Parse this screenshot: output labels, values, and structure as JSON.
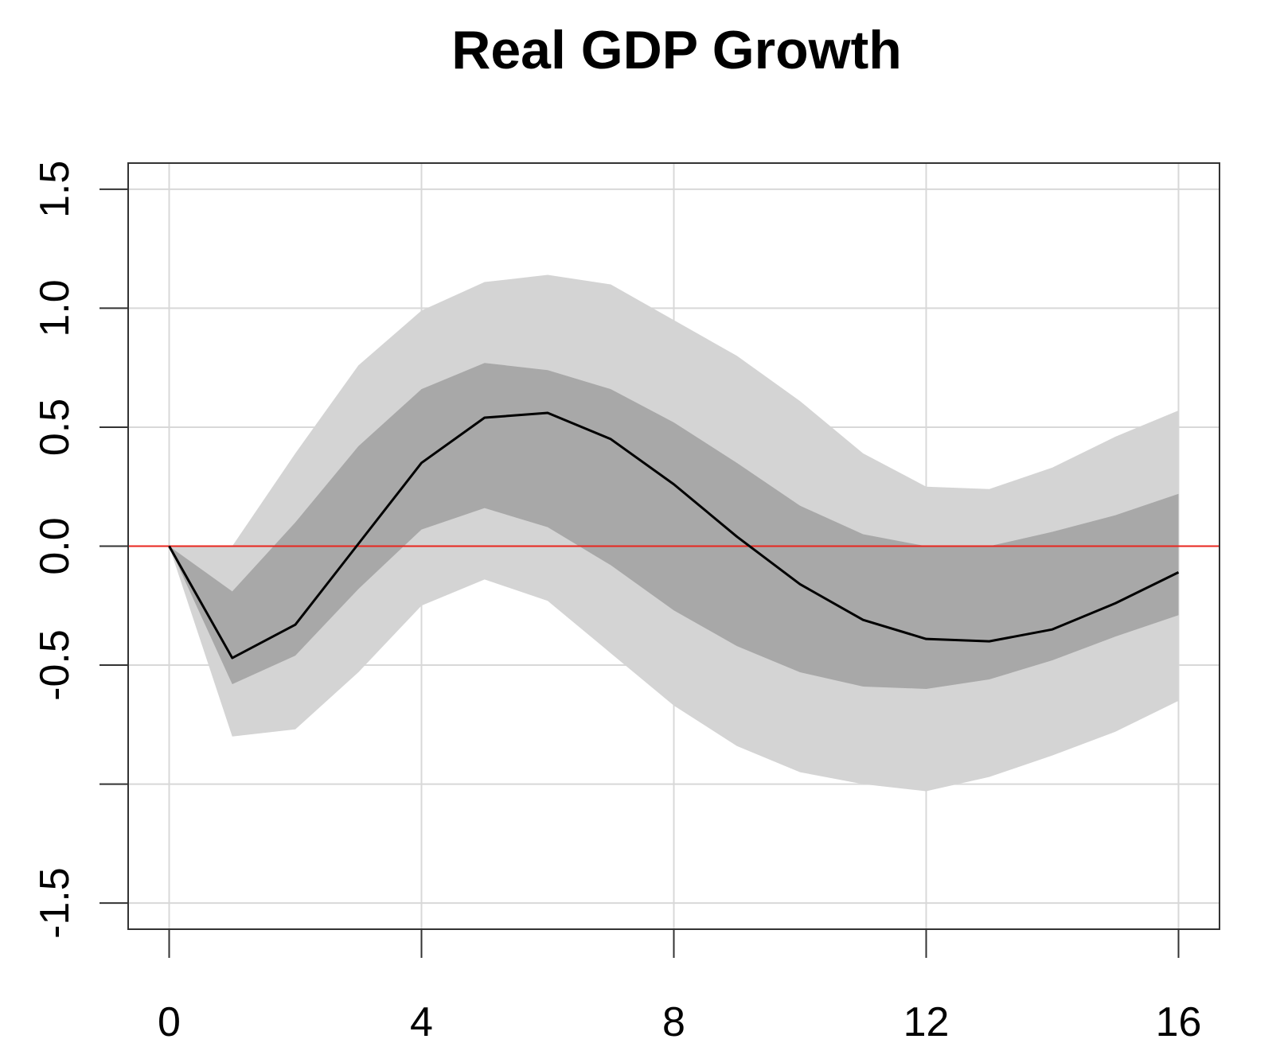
{
  "chart_data": {
    "type": "line",
    "title": "Real GDP Growth",
    "xlabel": "",
    "ylabel": "",
    "x": [
      0,
      1,
      2,
      3,
      4,
      5,
      6,
      7,
      8,
      9,
      10,
      11,
      12,
      13,
      14,
      15,
      16
    ],
    "series": [
      {
        "values": [
          0.0,
          -0.47,
          -0.33,
          0.01,
          0.35,
          0.54,
          0.56,
          0.45,
          0.26,
          0.04,
          -0.16,
          -0.31,
          -0.39,
          -0.4,
          -0.35,
          -0.24,
          -0.11
        ]
      }
    ],
    "bands": [
      {
        "lower": [
          0.0,
          -0.8,
          -0.77,
          -0.53,
          -0.25,
          -0.14,
          -0.23,
          -0.45,
          -0.67,
          -0.84,
          -0.95,
          -1.0,
          -1.03,
          -0.97,
          -0.88,
          -0.78,
          -0.65
        ],
        "upper": [
          0.0,
          0.0,
          0.39,
          0.76,
          0.99,
          1.11,
          1.14,
          1.1,
          0.95,
          0.8,
          0.61,
          0.39,
          0.25,
          0.24,
          0.33,
          0.46,
          0.57
        ]
      },
      {
        "lower": [
          0.0,
          -0.58,
          -0.46,
          -0.18,
          0.07,
          0.16,
          0.08,
          -0.08,
          -0.27,
          -0.42,
          -0.53,
          -0.59,
          -0.6,
          -0.56,
          -0.48,
          -0.38,
          -0.29
        ],
        "upper": [
          0.0,
          -0.19,
          0.1,
          0.42,
          0.66,
          0.77,
          0.74,
          0.66,
          0.52,
          0.35,
          0.17,
          0.05,
          0.0,
          0.0,
          0.06,
          0.13,
          0.22
        ]
      }
    ],
    "reference_line": 0,
    "x_ticks": [
      0,
      4,
      8,
      12,
      16
    ],
    "x_tick_labels": [
      "0",
      "4",
      "8",
      "12",
      "16"
    ],
    "y_ticks": [
      -1.5,
      -1.0,
      -0.5,
      0.0,
      0.5,
      1.0,
      1.5
    ],
    "y_tick_labels": [
      "-1.5",
      "",
      "-0.5",
      "0.0",
      "0.5",
      "1.0",
      "1.5"
    ],
    "xlim": [
      -0.65,
      16.65
    ],
    "ylim": [
      -1.61,
      1.61
    ],
    "grid": true,
    "colors": {
      "outer_band": "#d4d4d4",
      "inner_band": "#a8a8a8",
      "line": "#000000",
      "reference_line": "#e8261e",
      "grid": "#d8d8d8",
      "axis": "#333333"
    }
  }
}
